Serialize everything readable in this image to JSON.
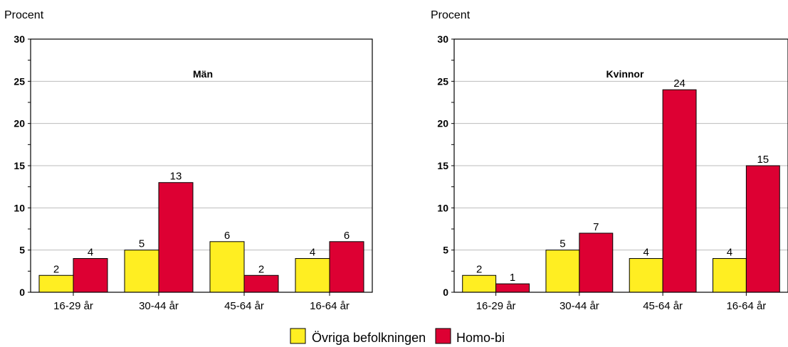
{
  "legend": {
    "items": [
      {
        "label": "Övriga befolkningen",
        "color": "#ffee22"
      },
      {
        "label": "Homo-bi",
        "color": "#dd0033"
      }
    ]
  },
  "chart_data": [
    {
      "type": "bar",
      "title": "Män",
      "ylabel": "Procent",
      "ylim": [
        0,
        30
      ],
      "yticks": [
        0,
        5,
        10,
        15,
        20,
        25,
        30
      ],
      "grid": true,
      "categories": [
        "16-29 år",
        "30-44 år",
        "45-64 år",
        "16-64 år"
      ],
      "series": [
        {
          "name": "Övriga befolkningen",
          "values": [
            2,
            5,
            6,
            4
          ],
          "color": "#ffee22"
        },
        {
          "name": "Homo-bi",
          "values": [
            4,
            13,
            2,
            6
          ],
          "color": "#dd0033"
        }
      ]
    },
    {
      "type": "bar",
      "title": "Kvinnor",
      "ylabel": "Procent",
      "ylim": [
        0,
        30
      ],
      "yticks": [
        0,
        5,
        10,
        15,
        20,
        25,
        30
      ],
      "grid": true,
      "categories": [
        "16-29 år",
        "30-44 år",
        "45-64 år",
        "16-64 år"
      ],
      "series": [
        {
          "name": "Övriga befolkningen",
          "values": [
            2,
            5,
            4,
            4
          ],
          "color": "#ffee22"
        },
        {
          "name": "Homo-bi",
          "values": [
            1,
            7,
            24,
            15
          ],
          "color": "#dd0033"
        }
      ]
    }
  ]
}
